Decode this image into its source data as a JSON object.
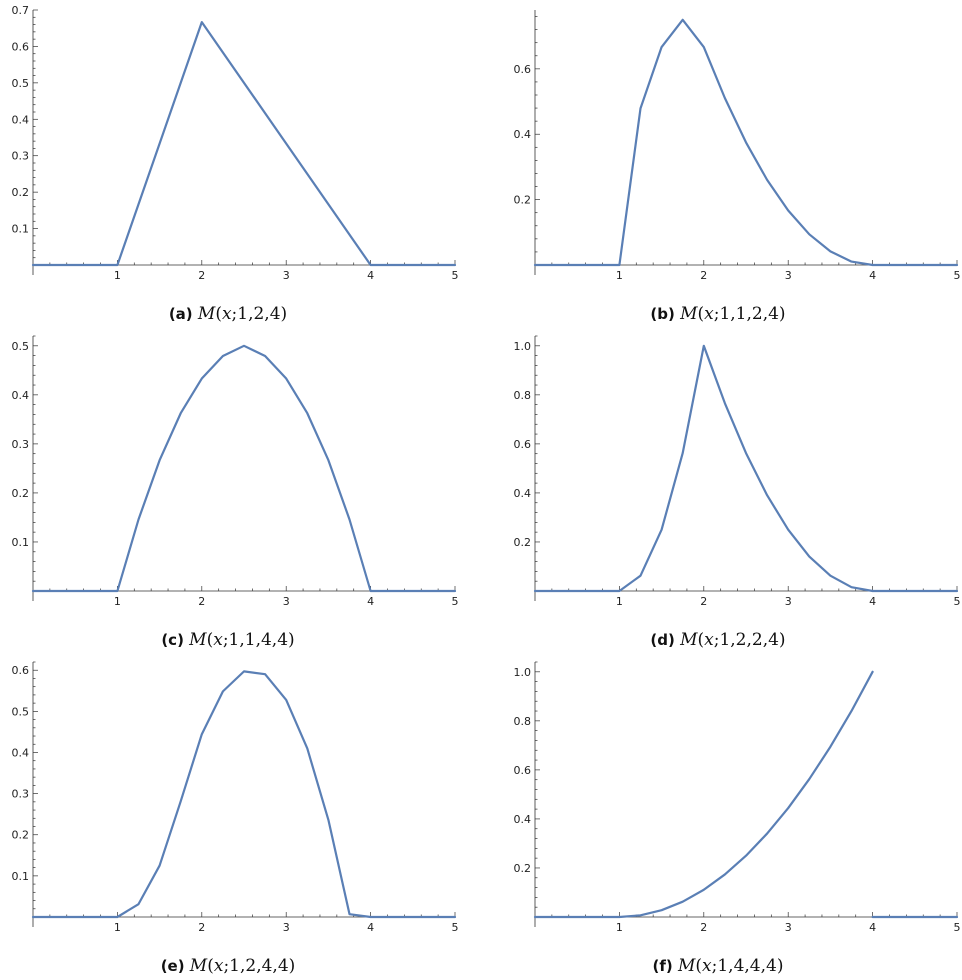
{
  "colors": {
    "curve": "#5a7fb5",
    "axis": "#333333"
  },
  "chart_data": [
    {
      "type": "line",
      "caption_label": "(a)",
      "caption_math": {
        "M": "M",
        "open": "(",
        "x": "x",
        "args": ";1,2,4",
        "close": ")"
      },
      "xlim": [
        0,
        5
      ],
      "ylim": [
        0,
        0.7
      ],
      "xticks": [
        "1",
        "2",
        "3",
        "4",
        "5"
      ],
      "yticks": [
        "0.1",
        "0.2",
        "0.3",
        "0.4",
        "0.5",
        "0.6",
        "0.7"
      ],
      "series": [
        {
          "x": [
            0,
            1,
            2,
            4,
            5
          ],
          "y": [
            0,
            0,
            0.6667,
            0,
            0
          ]
        }
      ]
    },
    {
      "type": "line",
      "caption_label": "(b)",
      "caption_math": {
        "M": "M",
        "open": "(",
        "x": "x",
        "args": ";1,1,2,4",
        "close": ")"
      },
      "xlim": [
        0,
        5
      ],
      "ylim": [
        0,
        0.78
      ],
      "xticks": [
        "1",
        "2",
        "3",
        "4",
        "5"
      ],
      "yticks": [
        "0.2",
        "0.4",
        "0.6"
      ],
      "series": [
        {
          "x": [
            0,
            1,
            1.25,
            1.5,
            1.75,
            2,
            2.25,
            2.5,
            2.75,
            3,
            3.25,
            3.5,
            3.75,
            4,
            5
          ],
          "y": [
            0,
            0,
            0.4792,
            0.6667,
            0.75,
            0.6667,
            0.5104,
            0.375,
            0.2604,
            0.1667,
            0.0938,
            0.0417,
            0.0104,
            0,
            0
          ]
        }
      ]
    },
    {
      "type": "line",
      "caption_label": "(c)",
      "caption_math": {
        "M": "M",
        "open": "(",
        "x": "x",
        "args": ";1,1,4,4",
        "close": ")"
      },
      "xlim": [
        0,
        5
      ],
      "ylim": [
        0,
        0.52
      ],
      "xticks": [
        "1",
        "2",
        "3",
        "4",
        "5"
      ],
      "yticks": [
        "0.1",
        "0.2",
        "0.3",
        "0.4",
        "0.5"
      ],
      "series": [
        {
          "x": [
            0,
            1,
            1.25,
            1.5,
            1.75,
            2,
            2.25,
            2.5,
            2.75,
            3,
            3.25,
            3.5,
            3.75,
            4,
            5
          ],
          "y": [
            0,
            0,
            0.1458,
            0.2667,
            0.3625,
            0.4333,
            0.4792,
            0.5,
            0.4792,
            0.4333,
            0.3625,
            0.2667,
            0.1458,
            0,
            0
          ]
        }
      ]
    },
    {
      "type": "line",
      "caption_label": "(d)",
      "caption_math": {
        "M": "M",
        "open": "(",
        "x": "x",
        "args": ";1,2,2,4",
        "close": ")"
      },
      "xlim": [
        0,
        5
      ],
      "ylim": [
        0,
        1.04
      ],
      "xticks": [
        "1",
        "2",
        "3",
        "4",
        "5"
      ],
      "yticks": [
        "0.2",
        "0.4",
        "0.6",
        "0.8",
        "1.0"
      ],
      "series": [
        {
          "x": [
            0,
            1,
            1.25,
            1.5,
            1.75,
            2,
            2.25,
            2.5,
            2.75,
            3,
            3.25,
            3.5,
            3.75,
            4,
            5
          ],
          "y": [
            0,
            0,
            0.0625,
            0.25,
            0.5625,
            1.0,
            0.7656,
            0.5625,
            0.3906,
            0.25,
            0.1406,
            0.0625,
            0.0156,
            0,
            0
          ]
        }
      ]
    },
    {
      "type": "line",
      "caption_label": "(e)",
      "caption_math": {
        "M": "M",
        "open": "(",
        "x": "x",
        "args": ";1,2,4,4",
        "close": ")"
      },
      "xlim": [
        0,
        5
      ],
      "ylim": [
        0,
        0.62
      ],
      "xticks": [
        "1",
        "2",
        "3",
        "4",
        "5"
      ],
      "yticks": [
        "0.1",
        "0.2",
        "0.3",
        "0.4",
        "0.5",
        "0.6"
      ],
      "series": [
        {
          "x": [
            0,
            1,
            1.25,
            1.5,
            1.75,
            2,
            2.25,
            2.5,
            2.75,
            3,
            3.25,
            3.5,
            3.75,
            4,
            5
          ],
          "y": [
            0,
            0,
            0.0313,
            0.125,
            0.2813,
            0.4444,
            0.5486,
            0.5972,
            0.5903,
            0.5278,
            0.4097,
            0.2361,
            0.0069,
            0,
            0
          ]
        }
      ]
    },
    {
      "type": "line",
      "caption_label": "(f)",
      "caption_math": {
        "M": "M",
        "open": "(",
        "x": "x",
        "args": ";1,4,4,4",
        "close": ")"
      },
      "xlim": [
        0,
        5
      ],
      "ylim": [
        0,
        1.04
      ],
      "xticks": [
        "1",
        "2",
        "3",
        "4",
        "5"
      ],
      "yticks": [
        "0.2",
        "0.4",
        "0.6",
        "0.8",
        "1.0"
      ],
      "series": [
        {
          "x": [
            0,
            1,
            1.25,
            1.5,
            1.75,
            2,
            2.25,
            2.5,
            2.75,
            3,
            3.25,
            3.5,
            3.75,
            4
          ],
          "y": [
            0,
            0,
            0.0069,
            0.0278,
            0.0625,
            0.1111,
            0.1736,
            0.25,
            0.3403,
            0.4444,
            0.5625,
            0.6944,
            0.8403,
            1.0
          ]
        },
        {
          "x": [
            4,
            5
          ],
          "y": [
            0,
            0
          ]
        }
      ]
    }
  ]
}
